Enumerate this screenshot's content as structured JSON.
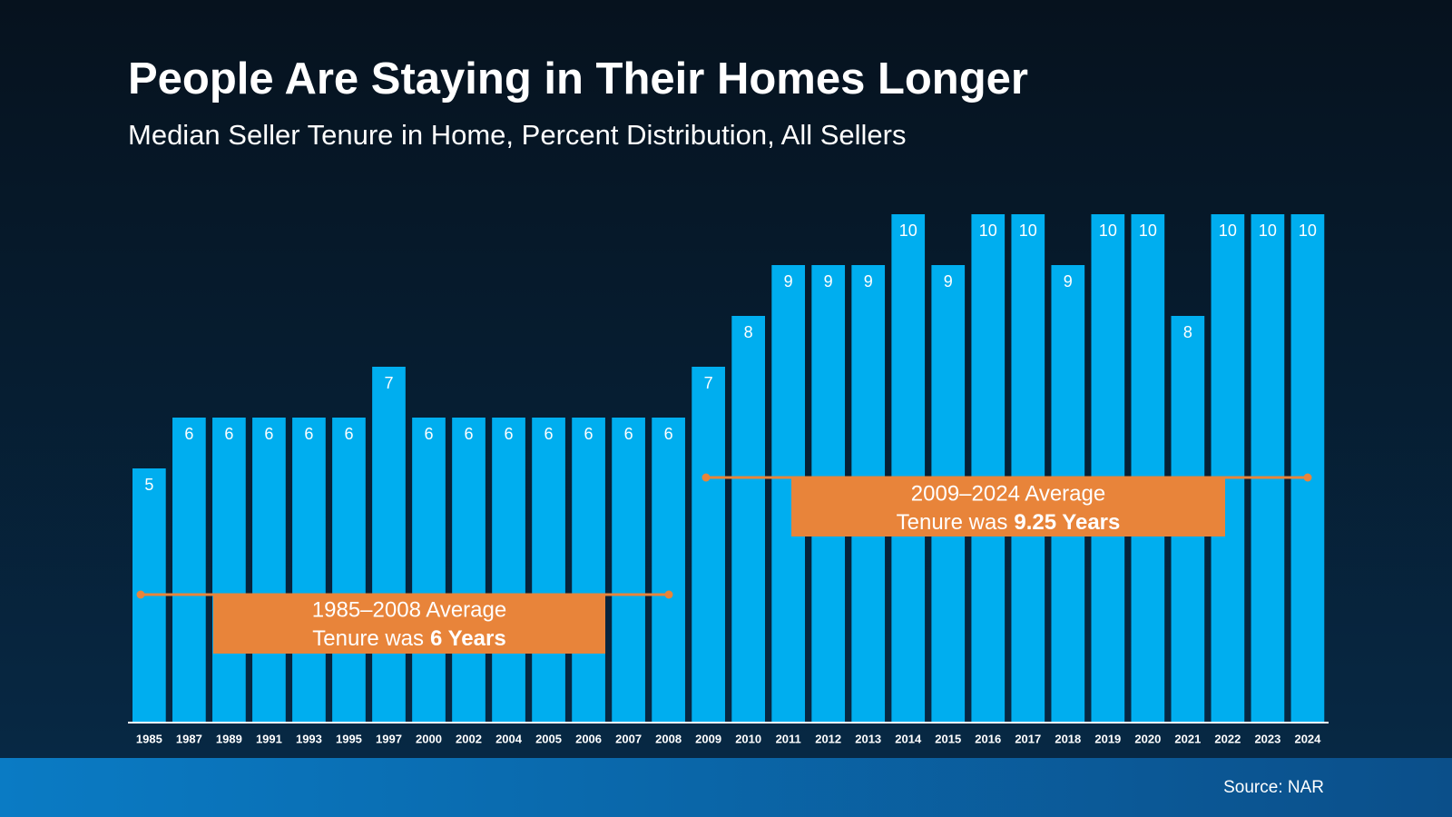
{
  "chart_data": {
    "type": "bar",
    "title": "People Are Staying in Their Homes Longer",
    "subtitle": "Median Seller Tenure in Home, Percent Distribution, All Sellers",
    "categories": [
      "1985",
      "1987",
      "1989",
      "1991",
      "1993",
      "1995",
      "1997",
      "2000",
      "2002",
      "2004",
      "2005",
      "2006",
      "2007",
      "2008",
      "2009",
      "2010",
      "2011",
      "2012",
      "2013",
      "2014",
      "2015",
      "2016",
      "2017",
      "2018",
      "2019",
      "2020",
      "2021",
      "2022",
      "2023",
      "2024"
    ],
    "values": [
      5,
      6,
      6,
      6,
      6,
      6,
      7,
      6,
      6,
      6,
      6,
      6,
      6,
      6,
      7,
      8,
      9,
      9,
      9,
      10,
      9,
      10,
      10,
      9,
      10,
      10,
      8,
      10,
      10,
      10
    ],
    "color": "#00aeef",
    "ylim": [
      0,
      10
    ],
    "annotations": [
      {
        "line1": "1985–2008 Average",
        "line2": "Tenure was",
        "emphasis": "6 Years"
      },
      {
        "line1": "2009–2024 Average",
        "line2": "Tenure was",
        "emphasis": "9.25 Years"
      }
    ],
    "source": "Source: NAR"
  }
}
